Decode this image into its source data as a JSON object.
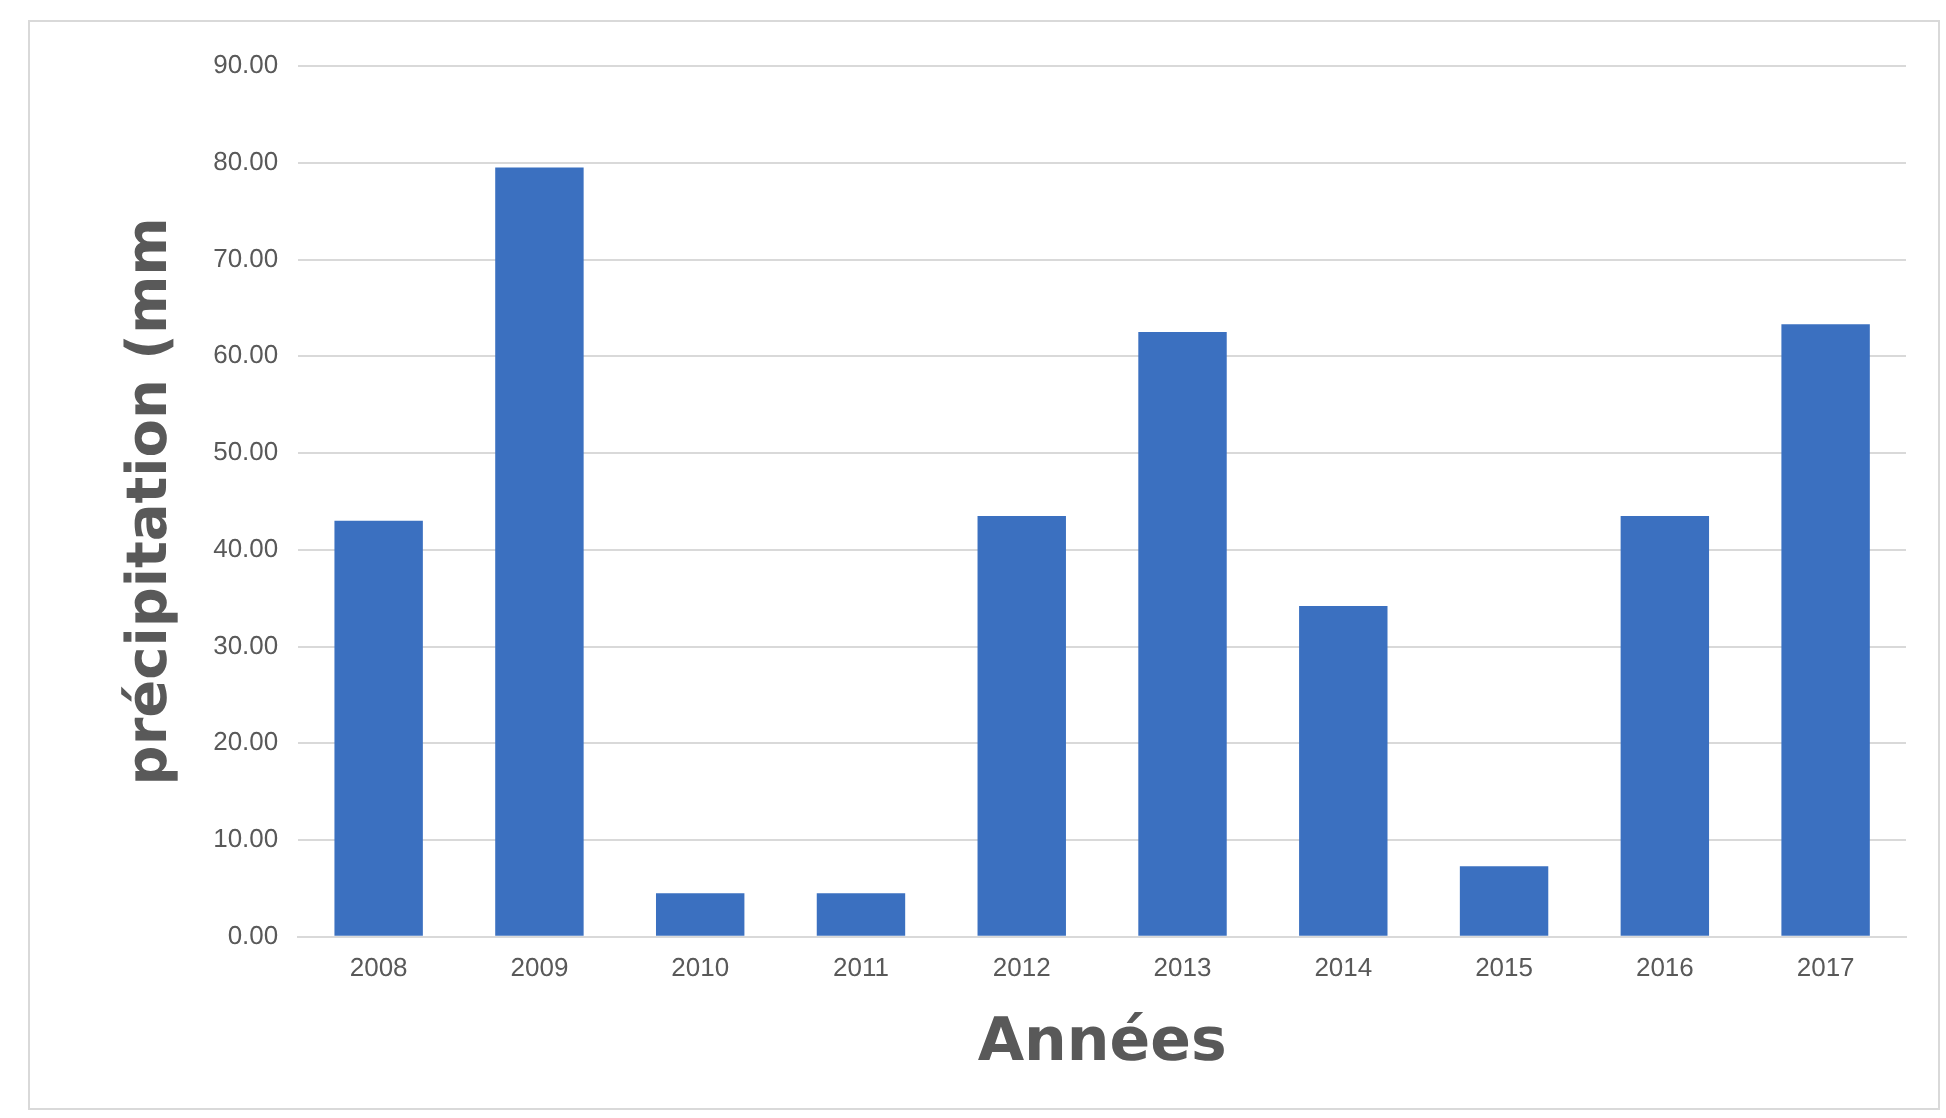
{
  "chart_data": {
    "type": "bar",
    "xlabel": "Années",
    "ylabel": "précipitation (mm",
    "categories": [
      "2008",
      "2009",
      "2010",
      "2011",
      "2012",
      "2013",
      "2014",
      "2015",
      "2016",
      "2017"
    ],
    "values": [
      43,
      79.5,
      4.5,
      4.5,
      43.5,
      62.5,
      34.2,
      7.3,
      43.5,
      63.3
    ],
    "color": "#3b70c0",
    "ylim": [
      0,
      90
    ],
    "yticks": [
      {
        "value": 0,
        "label": "0.00"
      },
      {
        "value": 10,
        "label": "10.00"
      },
      {
        "value": 20,
        "label": "20.00"
      },
      {
        "value": 30,
        "label": "30.00"
      },
      {
        "value": 40,
        "label": "40.00"
      },
      {
        "value": 50,
        "label": "50.00"
      },
      {
        "value": 60,
        "label": "60.00"
      },
      {
        "value": 70,
        "label": "70.00"
      },
      {
        "value": 80,
        "label": "80.00"
      },
      {
        "value": 90,
        "label": "90.00"
      }
    ],
    "grid": "y",
    "legend": false
  }
}
